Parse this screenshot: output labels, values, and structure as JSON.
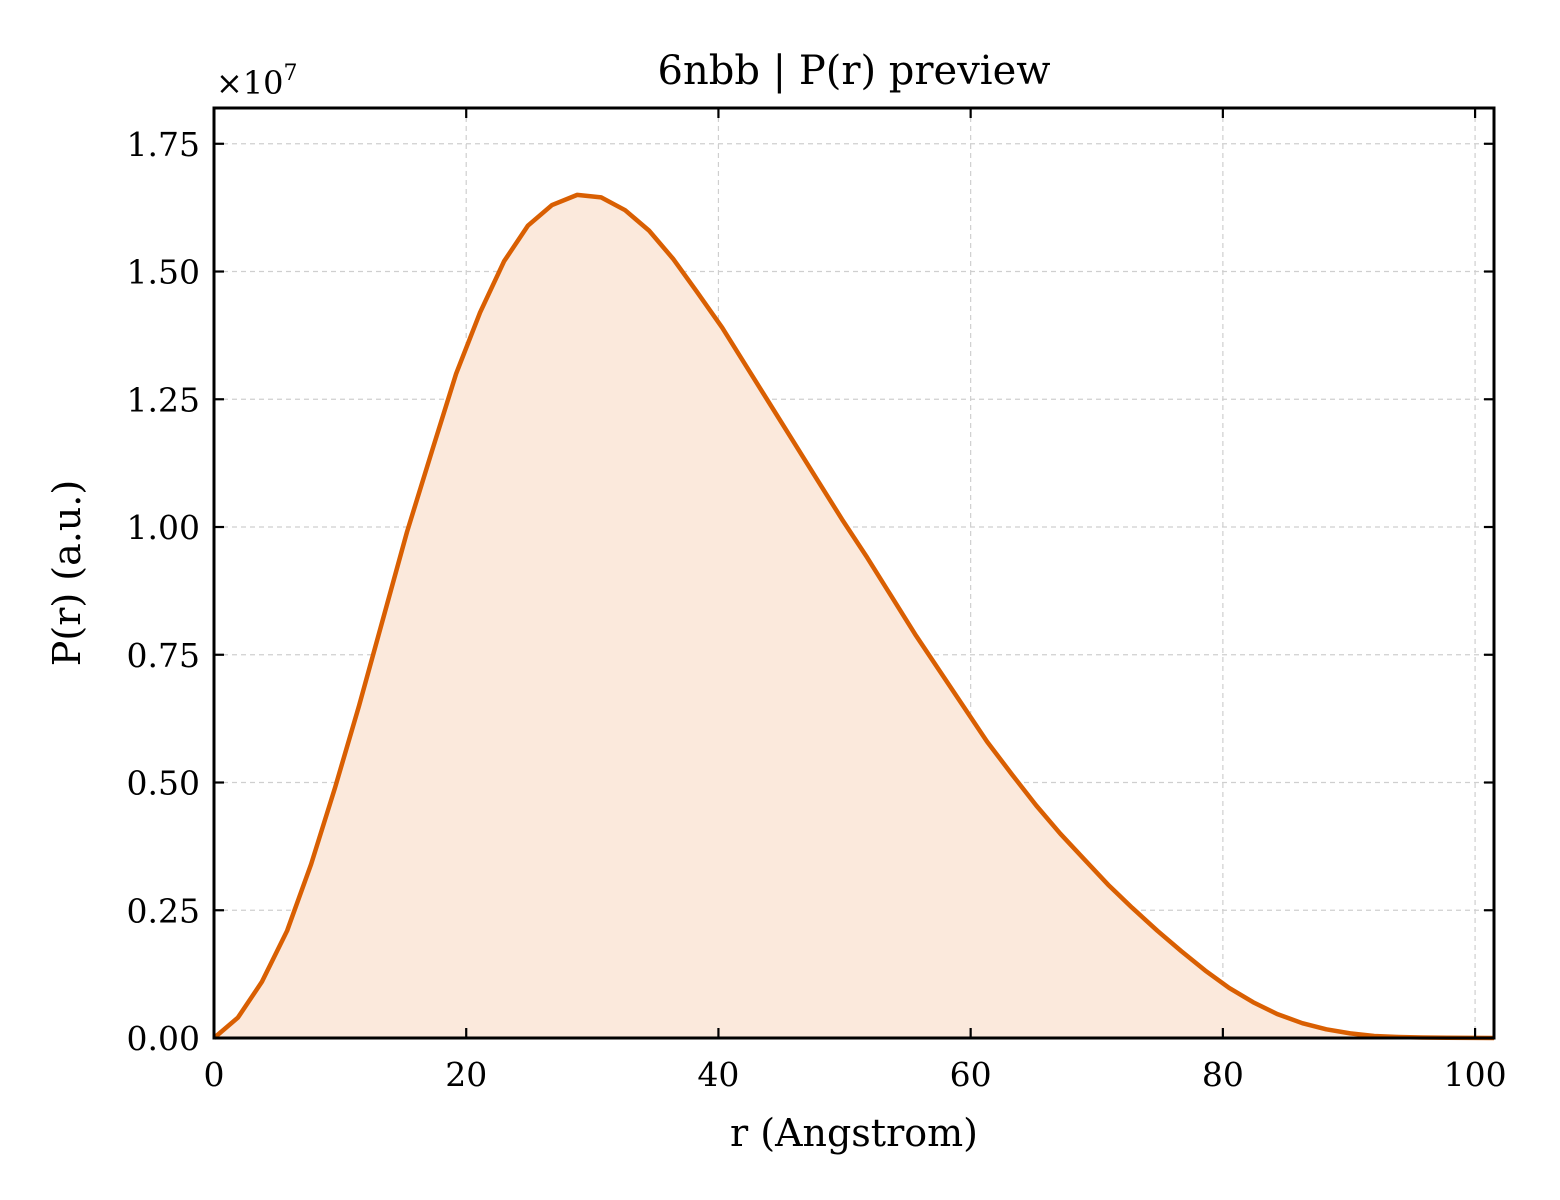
{
  "chart_data": {
    "type": "area",
    "title": "6nbb | P(r) preview",
    "xlabel": "r (Angstrom)",
    "ylabel": "P(r) (a.u.)",
    "y_offset_label": "×10",
    "y_offset_exponent": "7",
    "xlim": [
      0,
      101.5
    ],
    "ylim": [
      0,
      1.82
    ],
    "y_scale_factor": 10000000,
    "x_ticks": [
      0,
      20,
      40,
      60,
      80,
      100
    ],
    "x_tick_labels": [
      "0",
      "20",
      "40",
      "60",
      "80",
      "100"
    ],
    "y_ticks": [
      0,
      0.25,
      0.5,
      0.75,
      1.0,
      1.25,
      1.5,
      1.75
    ],
    "y_tick_labels": [
      "0.00",
      "0.25",
      "0.50",
      "0.75",
      "1.00",
      "1.25",
      "1.50",
      "1.75"
    ],
    "grid": true,
    "line_color": "#d95f02",
    "fill_color": "#fbe9dc",
    "series": [
      {
        "x": [
          0,
          1.9,
          3.8,
          5.8,
          7.7,
          9.6,
          11.5,
          13.4,
          15.3,
          17.3,
          19.2,
          21.1,
          23.0,
          24.9,
          26.8,
          28.8,
          30.7,
          32.6,
          34.5,
          36.4,
          38.3,
          40.3,
          42.2,
          44.1,
          46.0,
          47.9,
          49.8,
          51.8,
          53.7,
          55.6,
          57.5,
          59.4,
          61.3,
          63.3,
          65.2,
          67.1,
          69.0,
          70.9,
          72.8,
          74.8,
          76.7,
          78.6,
          80.5,
          82.4,
          84.3,
          86.3,
          88.2,
          90.1,
          92.0,
          93.9,
          95.8,
          97.8,
          99.7,
          101.5
        ],
        "y": [
          0.0,
          0.04,
          0.11,
          0.21,
          0.34,
          0.49,
          0.65,
          0.82,
          0.99,
          1.15,
          1.3,
          1.42,
          1.52,
          1.59,
          1.63,
          1.65,
          1.645,
          1.62,
          1.58,
          1.525,
          1.46,
          1.39,
          1.315,
          1.24,
          1.165,
          1.09,
          1.015,
          0.94,
          0.865,
          0.79,
          0.72,
          0.65,
          0.58,
          0.515,
          0.455,
          0.4,
          0.35,
          0.3,
          0.255,
          0.21,
          0.17,
          0.132,
          0.098,
          0.07,
          0.047,
          0.029,
          0.017,
          0.009,
          0.004,
          0.002,
          0.001,
          0.0005,
          0.0002,
          0.0
        ]
      }
    ]
  }
}
